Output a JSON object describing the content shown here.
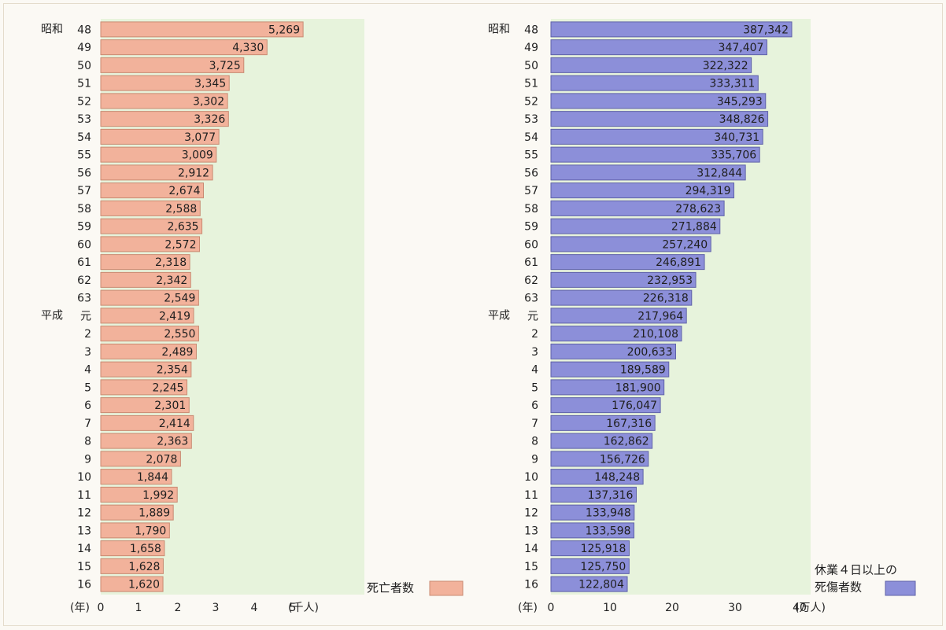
{
  "colors": {
    "plot_bg": "#e7f3dc",
    "bar_left": "#f2b29b",
    "bar_left_edge": "#c98a72",
    "bar_right": "#8c8fd9",
    "bar_right_edge": "#5f62a8"
  },
  "chart_data": [
    {
      "type": "bar",
      "orientation": "horizontal",
      "xlim": [
        0,
        5
      ],
      "x_ticks": [
        "0",
        "1",
        "2",
        "3",
        "4",
        "5"
      ],
      "x_prefix": "(年)",
      "x_unit": "(千人)",
      "legend": "死亡者数",
      "legend_position": "bottom-right",
      "era_labels": [
        "昭和",
        "平成"
      ],
      "categories": [
        "48",
        "49",
        "50",
        "51",
        "52",
        "53",
        "54",
        "55",
        "56",
        "57",
        "58",
        "59",
        "60",
        "61",
        "62",
        "63",
        "元",
        "2",
        "3",
        "4",
        "5",
        "6",
        "7",
        "8",
        "9",
        "10",
        "11",
        "12",
        "13",
        "14",
        "15",
        "16"
      ],
      "values": [
        5269,
        4330,
        3725,
        3345,
        3302,
        3326,
        3077,
        3009,
        2912,
        2674,
        2588,
        2635,
        2572,
        2318,
        2342,
        2549,
        2419,
        2550,
        2489,
        2354,
        2245,
        2301,
        2414,
        2363,
        2078,
        1844,
        1992,
        1889,
        1790,
        1658,
        1628,
        1620
      ],
      "value_labels": [
        "5,269",
        "4,330",
        "3,725",
        "3,345",
        "3,302",
        "3,326",
        "3,077",
        "3,009",
        "2,912",
        "2,674",
        "2,588",
        "2,635",
        "2,572",
        "2,318",
        "2,342",
        "2,549",
        "2,419",
        "2,550",
        "2,489",
        "2,354",
        "2,245",
        "2,301",
        "2,414",
        "2,363",
        "2,078",
        "1,844",
        "1,992",
        "1,889",
        "1,790",
        "1,658",
        "1,628",
        "1,620"
      ]
    },
    {
      "type": "bar",
      "orientation": "horizontal",
      "xlim": [
        0,
        40
      ],
      "x_ticks": [
        "0",
        "10",
        "20",
        "30",
        "40"
      ],
      "x_prefix": "(年)",
      "x_unit": "(万人)",
      "legend": [
        "休業４日以上の",
        "死傷者数"
      ],
      "legend_position": "bottom-right",
      "era_labels": [
        "昭和",
        "平成"
      ],
      "categories": [
        "48",
        "49",
        "50",
        "51",
        "52",
        "53",
        "54",
        "55",
        "56",
        "57",
        "58",
        "59",
        "60",
        "61",
        "62",
        "63",
        "元",
        "2",
        "3",
        "4",
        "5",
        "6",
        "7",
        "8",
        "9",
        "10",
        "11",
        "12",
        "13",
        "14",
        "15",
        "16"
      ],
      "values": [
        387342,
        347407,
        322322,
        333311,
        345293,
        348826,
        340731,
        335706,
        312844,
        294319,
        278623,
        271884,
        257240,
        246891,
        232953,
        226318,
        217964,
        210108,
        200633,
        189589,
        181900,
        176047,
        167316,
        162862,
        156726,
        148248,
        137316,
        133948,
        133598,
        125918,
        125750,
        122804
      ],
      "value_labels": [
        "387,342",
        "347,407",
        "322,322",
        "333,311",
        "345,293",
        "348,826",
        "340,731",
        "335,706",
        "312,844",
        "294,319",
        "278,623",
        "271,884",
        "257,240",
        "246,891",
        "232,953",
        "226,318",
        "217,964",
        "210,108",
        "200,633",
        "189,589",
        "181,900",
        "176,047",
        "167,316",
        "162,862",
        "156,726",
        "148,248",
        "137,316",
        "133,948",
        "133,598",
        "125,918",
        "125,750",
        "122,804"
      ]
    }
  ]
}
